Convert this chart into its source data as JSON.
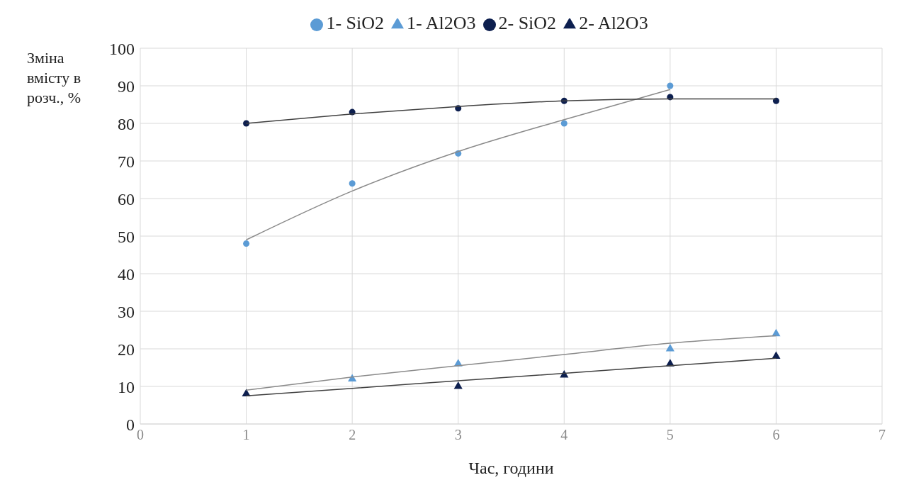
{
  "chart_data": {
    "type": "scatter",
    "xlabel": "Час, години",
    "ylabel": "Зміна вмісту в розч., %",
    "xlim": [
      0,
      7
    ],
    "xticks": [
      0,
      1,
      2,
      3,
      4,
      5,
      6,
      7
    ],
    "ylim": [
      0,
      100
    ],
    "yticks": [
      0,
      10,
      20,
      30,
      40,
      50,
      60,
      70,
      80,
      90,
      100
    ],
    "grid": true,
    "legend": "top",
    "series": [
      {
        "name": "1- SiO2",
        "color": "#5b9bd5",
        "marker": "circle",
        "x": [
          1,
          2,
          3,
          4,
          5
        ],
        "values": [
          48,
          64,
          72,
          80,
          90
        ]
      },
      {
        "name": "1- Al2O3",
        "color": "#5b9bd5",
        "marker": "triangle",
        "x": [
          2,
          3,
          5,
          6
        ],
        "values": [
          12,
          16,
          20,
          24
        ]
      },
      {
        "name": "2- SiO2",
        "color": "#0d1f4f",
        "marker": "circle",
        "x": [
          1,
          2,
          3,
          4,
          5,
          6
        ],
        "values": [
          80,
          83,
          84,
          86,
          87,
          86
        ]
      },
      {
        "name": "2- Al2O3",
        "color": "#0d1f4f",
        "marker": "triangle",
        "x": [
          1,
          3,
          4,
          5,
          6
        ],
        "values": [
          8,
          10,
          13,
          16,
          18
        ]
      },
      {
        "type": "line",
        "color": "#8a8a8a",
        "marker": "none",
        "x": [
          1,
          2,
          3,
          4,
          5
        ],
        "values": [
          49,
          62,
          72.5,
          81,
          89
        ]
      },
      {
        "type": "line",
        "color": "#404040",
        "marker": "none",
        "x": [
          1,
          2,
          3,
          4,
          5,
          6
        ],
        "values": [
          80,
          82.5,
          84.5,
          86,
          86.5,
          86.5
        ]
      },
      {
        "type": "line",
        "color": "#8a8a8a",
        "marker": "none",
        "x": [
          1,
          2,
          3,
          4,
          5,
          6
        ],
        "values": [
          9,
          12.5,
          15.5,
          18.5,
          21.5,
          23.5
        ]
      },
      {
        "type": "line",
        "color": "#404040",
        "marker": "none",
        "x": [
          1,
          2,
          3,
          4,
          5,
          6
        ],
        "values": [
          7.5,
          9.5,
          11.5,
          13.5,
          15.5,
          17.5
        ]
      }
    ]
  }
}
